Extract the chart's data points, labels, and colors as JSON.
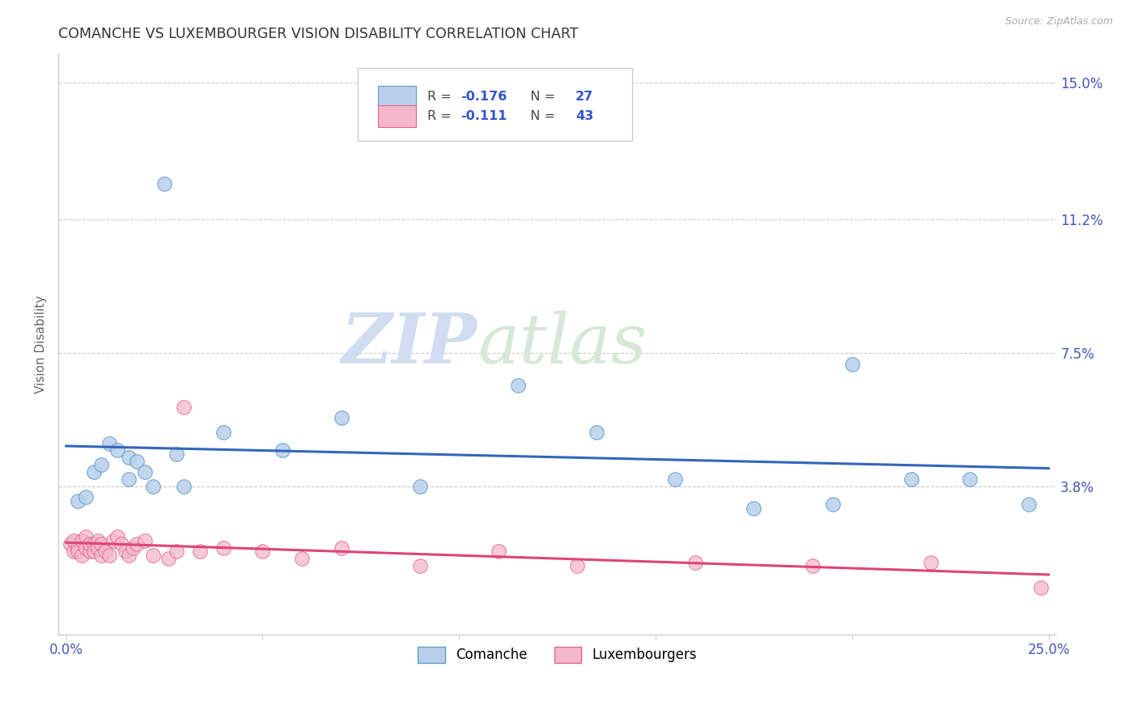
{
  "title": "COMANCHE VS LUXEMBOURGER VISION DISABILITY CORRELATION CHART",
  "source": "Source: ZipAtlas.com",
  "ylabel": "Vision Disability",
  "xlim": [
    -0.002,
    0.252
  ],
  "ylim": [
    -0.003,
    0.158
  ],
  "ytick_positions": [
    0.038,
    0.075,
    0.112,
    0.15
  ],
  "ytick_labels": [
    "3.8%",
    "7.5%",
    "11.2%",
    "15.0%"
  ],
  "comanche_color": "#b8d0ea",
  "comanche_edge_color": "#6699cc",
  "comanche_line_color": "#3366bb",
  "luxembourger_color": "#f5b8cb",
  "luxembourger_edge_color": "#dd6688",
  "luxembourger_line_color": "#dd4477",
  "watermark_zip": "ZIP",
  "watermark_atlas": "atlas",
  "background_color": "#ffffff",
  "grid_color": "#cccccc",
  "title_color": "#333333",
  "axis_color": "#4455bb",
  "comanche_x": [
    0.003,
    0.005,
    0.007,
    0.009,
    0.011,
    0.013,
    0.016,
    0.016,
    0.018,
    0.02,
    0.022,
    0.025,
    0.028,
    0.03,
    0.04,
    0.055,
    0.07,
    0.09,
    0.115,
    0.135,
    0.155,
    0.175,
    0.195,
    0.2,
    0.215,
    0.23,
    0.245
  ],
  "comanche_y": [
    0.034,
    0.035,
    0.042,
    0.044,
    0.05,
    0.048,
    0.04,
    0.046,
    0.045,
    0.042,
    0.038,
    0.122,
    0.047,
    0.038,
    0.053,
    0.048,
    0.057,
    0.038,
    0.066,
    0.053,
    0.04,
    0.032,
    0.033,
    0.072,
    0.04,
    0.04,
    0.033
  ],
  "luxembourger_x": [
    0.001,
    0.002,
    0.002,
    0.003,
    0.003,
    0.004,
    0.004,
    0.005,
    0.005,
    0.006,
    0.006,
    0.007,
    0.007,
    0.008,
    0.008,
    0.009,
    0.009,
    0.01,
    0.011,
    0.012,
    0.013,
    0.014,
    0.015,
    0.016,
    0.017,
    0.018,
    0.02,
    0.022,
    0.026,
    0.028,
    0.03,
    0.034,
    0.04,
    0.05,
    0.06,
    0.07,
    0.09,
    0.11,
    0.13,
    0.16,
    0.19,
    0.22,
    0.248
  ],
  "luxembourger_y": [
    0.022,
    0.02,
    0.023,
    0.021,
    0.02,
    0.019,
    0.023,
    0.021,
    0.024,
    0.02,
    0.022,
    0.022,
    0.02,
    0.023,
    0.021,
    0.019,
    0.022,
    0.02,
    0.019,
    0.023,
    0.024,
    0.022,
    0.02,
    0.019,
    0.021,
    0.022,
    0.023,
    0.019,
    0.018,
    0.02,
    0.06,
    0.02,
    0.021,
    0.02,
    0.018,
    0.021,
    0.016,
    0.02,
    0.016,
    0.017,
    0.016,
    0.017,
    0.01
  ],
  "legend_r1": "R = ",
  "legend_v1": "-0.176",
  "legend_n1_label": "  N = ",
  "legend_n1_val": "27",
  "legend_r2": "R = ",
  "legend_v2": "-0.111",
  "legend_n2_label": "  N = ",
  "legend_n2_val": "43",
  "bottom_label1": "Comanche",
  "bottom_label2": "Luxembourgers"
}
